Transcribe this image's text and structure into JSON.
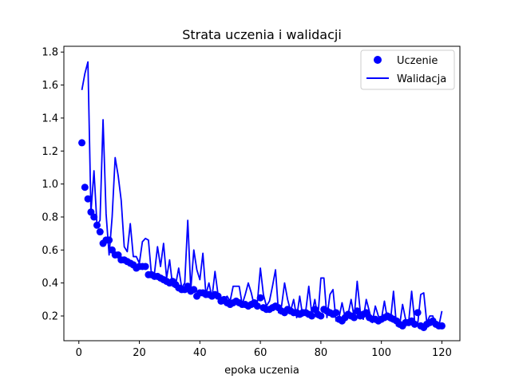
{
  "chart_data": {
    "type": "line",
    "title": "Strata uczenia i walidacji",
    "xlabel": "epoka uczenia",
    "ylabel": "",
    "xlim": [
      -4.95,
      125.95
    ],
    "ylim": [
      0.05,
      1.835
    ],
    "xticks": [
      0,
      20,
      40,
      60,
      80,
      100,
      120
    ],
    "yticks": [
      0.2,
      0.4,
      0.6,
      0.8,
      1.0,
      1.2,
      1.4,
      1.6,
      1.8
    ],
    "grid": false,
    "legend_position": "top-right",
    "colors": {
      "series": "#0000ff",
      "axis": "#000000",
      "background": "#ffffff"
    },
    "x": [
      1,
      2,
      3,
      4,
      5,
      6,
      7,
      8,
      9,
      10,
      11,
      12,
      13,
      14,
      15,
      16,
      17,
      18,
      19,
      20,
      21,
      22,
      23,
      24,
      25,
      26,
      27,
      28,
      29,
      30,
      31,
      32,
      33,
      34,
      35,
      36,
      37,
      38,
      39,
      40,
      41,
      42,
      43,
      44,
      45,
      46,
      47,
      48,
      49,
      50,
      51,
      52,
      53,
      54,
      55,
      56,
      57,
      58,
      59,
      60,
      61,
      62,
      63,
      64,
      65,
      66,
      67,
      68,
      69,
      70,
      71,
      72,
      73,
      74,
      75,
      76,
      77,
      78,
      79,
      80,
      81,
      82,
      83,
      84,
      85,
      86,
      87,
      88,
      89,
      90,
      91,
      92,
      93,
      94,
      95,
      96,
      97,
      98,
      99,
      100,
      101,
      102,
      103,
      104,
      105,
      106,
      107,
      108,
      109,
      110,
      111,
      112,
      113,
      114,
      115,
      116,
      117,
      118,
      119,
      120
    ],
    "series": [
      {
        "name": "Uczenie",
        "style": "markers",
        "values": [
          1.25,
          0.98,
          0.91,
          0.83,
          0.8,
          0.75,
          0.71,
          0.64,
          0.66,
          0.66,
          0.6,
          0.57,
          0.57,
          0.54,
          0.54,
          0.53,
          0.52,
          0.51,
          0.49,
          0.5,
          0.5,
          0.5,
          0.45,
          0.45,
          0.44,
          0.44,
          0.43,
          0.42,
          0.41,
          0.4,
          0.41,
          0.39,
          0.37,
          0.36,
          0.36,
          0.38,
          0.35,
          0.36,
          0.32,
          0.34,
          0.34,
          0.33,
          0.33,
          0.32,
          0.33,
          0.32,
          0.29,
          0.3,
          0.28,
          0.27,
          0.28,
          0.29,
          0.28,
          0.27,
          0.27,
          0.26,
          0.27,
          0.28,
          0.26,
          0.31,
          0.25,
          0.24,
          0.24,
          0.25,
          0.26,
          0.25,
          0.23,
          0.22,
          0.24,
          0.23,
          0.22,
          0.22,
          0.21,
          0.22,
          0.22,
          0.21,
          0.2,
          0.24,
          0.21,
          0.2,
          0.24,
          0.23,
          0.22,
          0.21,
          0.22,
          0.18,
          0.17,
          0.19,
          0.21,
          0.2,
          0.19,
          0.23,
          0.2,
          0.21,
          0.22,
          0.19,
          0.18,
          0.18,
          0.17,
          0.18,
          0.19,
          0.2,
          0.19,
          0.18,
          0.17,
          0.15,
          0.14,
          0.16,
          0.16,
          0.17,
          0.15,
          0.22,
          0.14,
          0.13,
          0.15,
          0.16,
          0.17,
          0.15,
          0.14,
          0.14
        ]
      },
      {
        "name": "Walidacja",
        "style": "line",
        "values": [
          1.57,
          1.67,
          1.74,
          0.83,
          1.08,
          0.75,
          0.78,
          1.39,
          0.82,
          0.57,
          0.8,
          1.16,
          1.05,
          0.9,
          0.62,
          0.59,
          0.76,
          0.56,
          0.56,
          0.52,
          0.65,
          0.67,
          0.66,
          0.45,
          0.46,
          0.62,
          0.5,
          0.64,
          0.43,
          0.54,
          0.38,
          0.39,
          0.49,
          0.37,
          0.4,
          0.78,
          0.36,
          0.6,
          0.48,
          0.42,
          0.58,
          0.33,
          0.4,
          0.31,
          0.47,
          0.33,
          0.31,
          0.3,
          0.32,
          0.29,
          0.38,
          0.38,
          0.38,
          0.27,
          0.33,
          0.4,
          0.34,
          0.26,
          0.28,
          0.49,
          0.33,
          0.26,
          0.29,
          0.38,
          0.48,
          0.22,
          0.26,
          0.4,
          0.3,
          0.23,
          0.3,
          0.19,
          0.32,
          0.2,
          0.23,
          0.38,
          0.21,
          0.3,
          0.19,
          0.43,
          0.43,
          0.19,
          0.33,
          0.36,
          0.17,
          0.19,
          0.28,
          0.19,
          0.21,
          0.3,
          0.19,
          0.41,
          0.23,
          0.18,
          0.3,
          0.23,
          0.16,
          0.26,
          0.2,
          0.18,
          0.29,
          0.18,
          0.17,
          0.35,
          0.14,
          0.14,
          0.27,
          0.18,
          0.16,
          0.35,
          0.17,
          0.15,
          0.33,
          0.34,
          0.16,
          0.2,
          0.2,
          0.14,
          0.14,
          0.23
        ]
      }
    ]
  }
}
